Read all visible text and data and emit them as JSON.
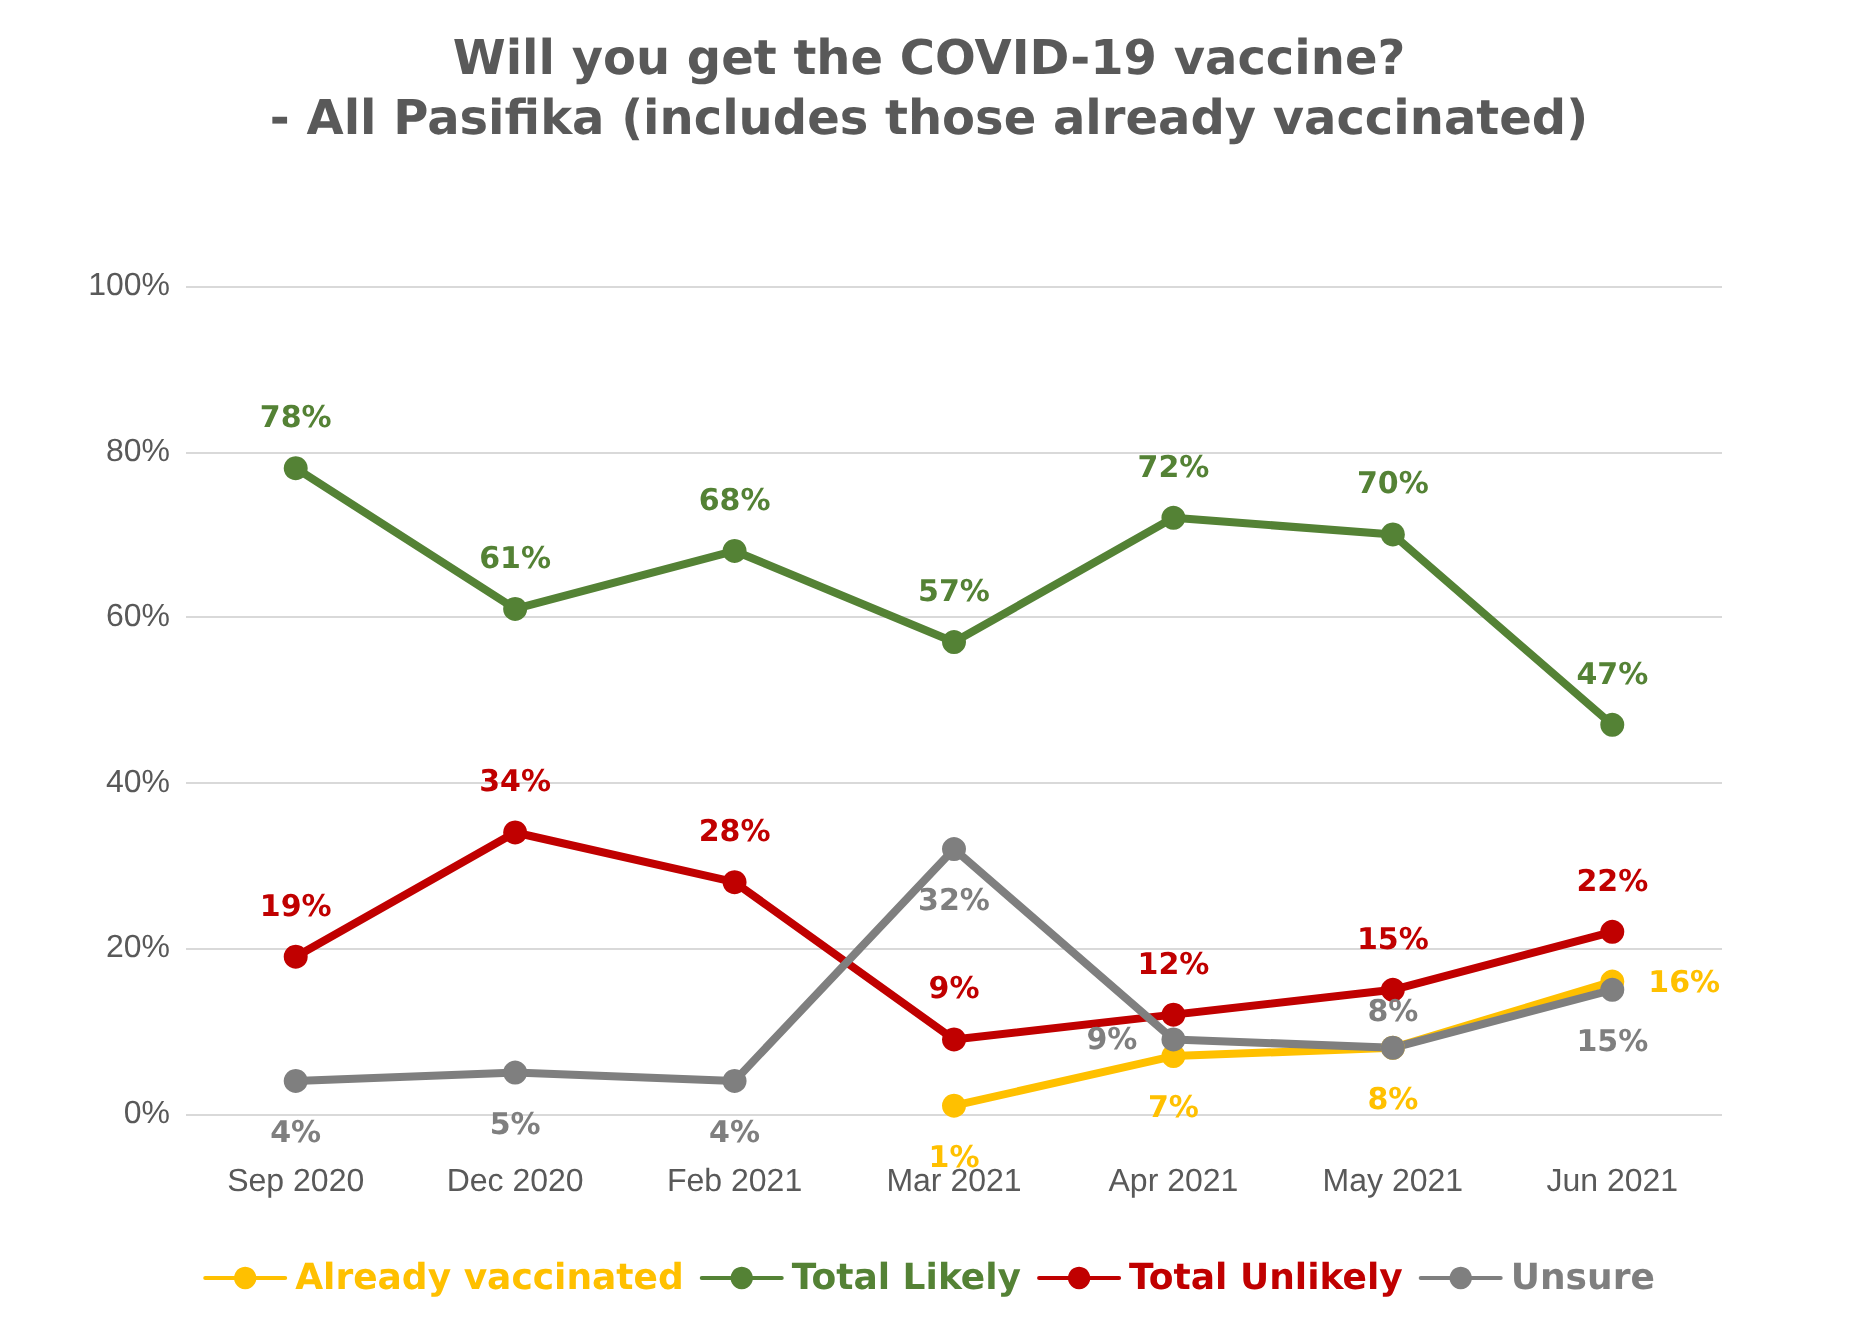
{
  "chart_data": {
    "type": "line",
    "title": "Will you get the COVID-19 vaccine?",
    "subtitle": "- All Pasifika (includes those already vaccinated)",
    "categories": [
      "Sep 2020",
      "Dec 2020",
      "Feb 2021",
      "Mar 2021",
      "Apr 2021",
      "May 2021",
      "Jun 2021"
    ],
    "series": [
      {
        "name": "Already vaccinated",
        "color": "#ffc000",
        "values": [
          null,
          null,
          null,
          1,
          7,
          8,
          16
        ],
        "value_labels": [
          null,
          null,
          null,
          "1%",
          "7%",
          "8%",
          "16%"
        ]
      },
      {
        "name": "Total Likely",
        "color": "#548235",
        "values": [
          78,
          61,
          68,
          57,
          72,
          70,
          47
        ],
        "value_labels": [
          "78%",
          "61%",
          "68%",
          "57%",
          "72%",
          "70%",
          "47%"
        ]
      },
      {
        "name": "Total Unlikely",
        "color": "#c00000",
        "values": [
          19,
          34,
          28,
          9,
          12,
          15,
          22
        ],
        "value_labels": [
          "19%",
          "34%",
          "28%",
          "9%",
          "12%",
          "15%",
          "22%"
        ]
      },
      {
        "name": "Unsure",
        "color": "#7f7f7f",
        "values": [
          4,
          5,
          4,
          32,
          9,
          8,
          15
        ],
        "value_labels": [
          "4%",
          "5%",
          "4%",
          "32%",
          "9%",
          "8%",
          "15%"
        ]
      }
    ],
    "ylim": [
      0,
      100
    ],
    "yticks": [
      {
        "value": 0,
        "label": "0%"
      },
      {
        "value": 20,
        "label": "20%"
      },
      {
        "value": 40,
        "label": "40%"
      },
      {
        "value": 60,
        "label": "60%"
      },
      {
        "value": 80,
        "label": "80%"
      },
      {
        "value": 100,
        "label": "100%"
      }
    ],
    "grid": "y",
    "legend": "bottom",
    "marker": "circle",
    "line_style": "solid"
  }
}
